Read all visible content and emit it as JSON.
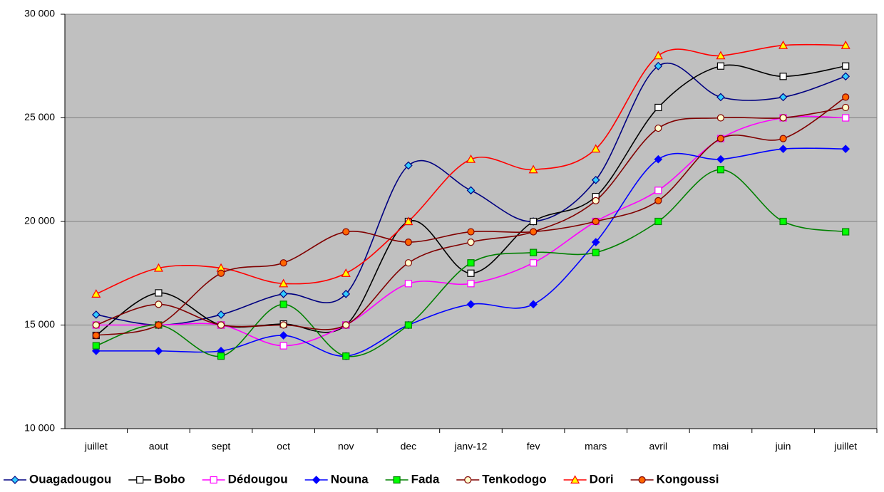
{
  "chart_data": {
    "type": "line",
    "categories": [
      "juillet",
      "aout",
      "sept",
      "oct",
      "nov",
      "dec",
      "janv-12",
      "fev",
      "mars",
      "avril",
      "mai",
      "juin",
      "juillet"
    ],
    "ylim": [
      10000,
      30000
    ],
    "yticks": [
      {
        "value": 10000,
        "label": "10 000"
      },
      {
        "value": 15000,
        "label": "15 000"
      },
      {
        "value": 20000,
        "label": "20 000"
      },
      {
        "value": 25000,
        "label": "25 000"
      },
      {
        "value": 30000,
        "label": "30 000"
      }
    ],
    "grid": true,
    "smooth": true,
    "legend": "bottom",
    "series": [
      {
        "name": "Ouagadougou",
        "color": "#000080",
        "marker": "diamond",
        "marker_fill": "#33ccff",
        "values": [
          15500,
          15000,
          15500,
          16500,
          16500,
          22700,
          21500,
          20000,
          22000,
          27500,
          26000,
          26000,
          27000
        ]
      },
      {
        "name": "Bobo",
        "color": "#000000",
        "marker": "square",
        "marker_fill": "#ffffff",
        "values": [
          14500,
          16550,
          15000,
          15050,
          15000,
          20000,
          17500,
          20000,
          21200,
          25500,
          27500,
          27000,
          27500
        ]
      },
      {
        "name": "Dédougou",
        "color": "#ff00ff",
        "marker": "square",
        "marker_fill": "#ffffff",
        "values": [
          15000,
          15000,
          15000,
          14000,
          15000,
          17000,
          17000,
          18000,
          20000,
          21500,
          24000,
          25000,
          25000
        ]
      },
      {
        "name": "Nouna",
        "color": "#0000ff",
        "marker": "diamond",
        "marker_fill": "#0000ff",
        "values": [
          13750,
          13750,
          13750,
          14500,
          13500,
          15000,
          16000,
          16000,
          19000,
          23000,
          23000,
          23500,
          23500
        ]
      },
      {
        "name": "Fada",
        "color": "#008000",
        "marker": "square",
        "marker_fill": "#00ff00",
        "values": [
          14000,
          15000,
          13500,
          16000,
          13500,
          15000,
          18000,
          18500,
          18500,
          20000,
          22500,
          20000,
          19500
        ]
      },
      {
        "name": "Tenkodogo",
        "color": "#800000",
        "marker": "circle",
        "marker_fill": "#ffffcc",
        "values": [
          15000,
          16000,
          15000,
          15000,
          15000,
          18000,
          19000,
          19500,
          21000,
          24500,
          25000,
          25000,
          25500
        ]
      },
      {
        "name": "Dori",
        "color": "#ff0000",
        "marker": "triangle",
        "marker_fill": "#ffff00",
        "values": [
          16500,
          17750,
          17750,
          17000,
          17500,
          20000,
          23000,
          22500,
          23500,
          28000,
          28000,
          28500,
          28500
        ]
      },
      {
        "name": "Kongoussi",
        "color": "#800000",
        "marker": "circle",
        "marker_fill": "#ff6600",
        "values": [
          14500,
          15000,
          17500,
          18000,
          19500,
          19000,
          19500,
          19500,
          20000,
          21000,
          24000,
          24000,
          26000
        ]
      }
    ]
  }
}
